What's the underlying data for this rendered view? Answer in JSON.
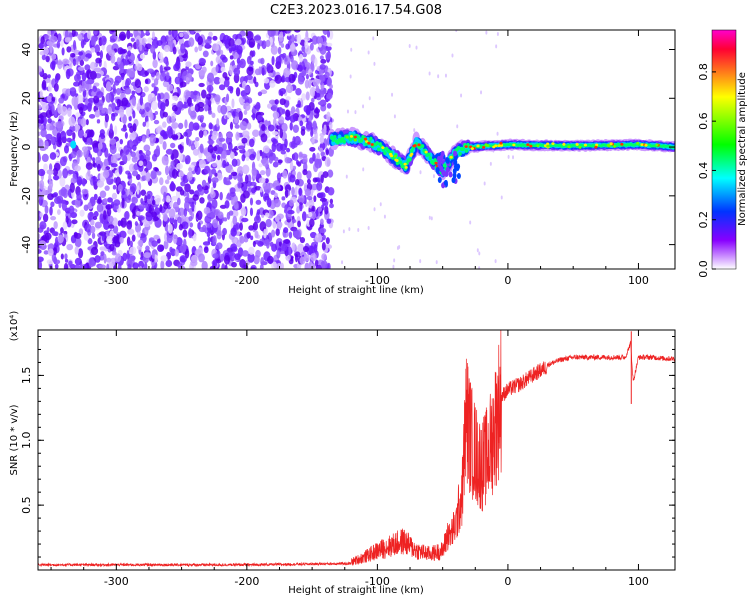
{
  "title": "C2E3.2023.016.17.54.G08",
  "chart_data": [
    {
      "type": "heatmap",
      "title": "",
      "xlabel": "Height of straight line (km)",
      "ylabel": "Frequency (Hz)",
      "xlim": [
        -360,
        128
      ],
      "ylim": [
        -50,
        48
      ],
      "xticks": [
        -300,
        -200,
        -100,
        0,
        100
      ],
      "yticks": [
        -40,
        -20,
        0,
        20,
        40
      ],
      "colorbar": {
        "label": "Normalized spectral amplitude",
        "range": [
          0,
          0.97
        ],
        "ticks": [
          "0.0",
          "0.2",
          "0.4",
          "0.6",
          "0.8"
        ],
        "colormap": [
          "#ff00cc",
          "#ff0033",
          "#ffff00",
          "#00ff00",
          "#00ffff",
          "#0033ff",
          "#8800ff",
          "#ffffff"
        ]
      },
      "features": {
        "noise_region_x": [
          -360,
          -135
        ],
        "signal_track": [
          {
            "x": -135,
            "y": 3
          },
          {
            "x": -120,
            "y": 4
          },
          {
            "x": -105,
            "y": 2
          },
          {
            "x": -95,
            "y": -1
          },
          {
            "x": -85,
            "y": -5
          },
          {
            "x": -78,
            "y": -8
          },
          {
            "x": -70,
            "y": 2
          },
          {
            "x": -60,
            "y": -4
          },
          {
            "x": -50,
            "y": -10
          },
          {
            "x": -40,
            "y": -2
          },
          {
            "x": -30,
            "y": 0
          },
          {
            "x": 0,
            "y": 1
          },
          {
            "x": 50,
            "y": 0.5
          },
          {
            "x": 100,
            "y": 1
          },
          {
            "x": 128,
            "y": 0
          }
        ]
      }
    },
    {
      "type": "line",
      "title": "",
      "xlabel": "Height of straight line (km)",
      "ylabel": "SNR (10 * v/v)",
      "y_multiplier": "(x10⁴)",
      "xlim": [
        -360,
        128
      ],
      "ylim": [
        0,
        1.85
      ],
      "xticks": [
        -300,
        -200,
        -100,
        0,
        100
      ],
      "yticks": [
        0.5,
        1.0,
        1.5
      ],
      "ytick_labels": [
        "0.5",
        "1.0",
        "1.5"
      ],
      "series": [
        {
          "color": "#ee2222",
          "x": [
            -360,
            -300,
            -200,
            -120,
            -110,
            -100,
            -90,
            -80,
            -70,
            -60,
            -50,
            -45,
            -40,
            -35,
            -32,
            -28,
            -25,
            -20,
            -15,
            -10,
            -5,
            0,
            10,
            20,
            30,
            40,
            50,
            60,
            70,
            80,
            90,
            94,
            96,
            100,
            110,
            120,
            128
          ],
          "y": [
            0.04,
            0.04,
            0.04,
            0.05,
            0.08,
            0.12,
            0.15,
            0.18,
            0.12,
            0.1,
            0.12,
            0.25,
            0.35,
            0.6,
            1.2,
            1.0,
            0.9,
            0.8,
            0.9,
            1.1,
            1.35,
            1.4,
            1.45,
            1.52,
            1.58,
            1.62,
            1.64,
            1.64,
            1.64,
            1.64,
            1.64,
            1.75,
            1.45,
            1.64,
            1.64,
            1.63,
            1.63
          ]
        }
      ]
    }
  ]
}
